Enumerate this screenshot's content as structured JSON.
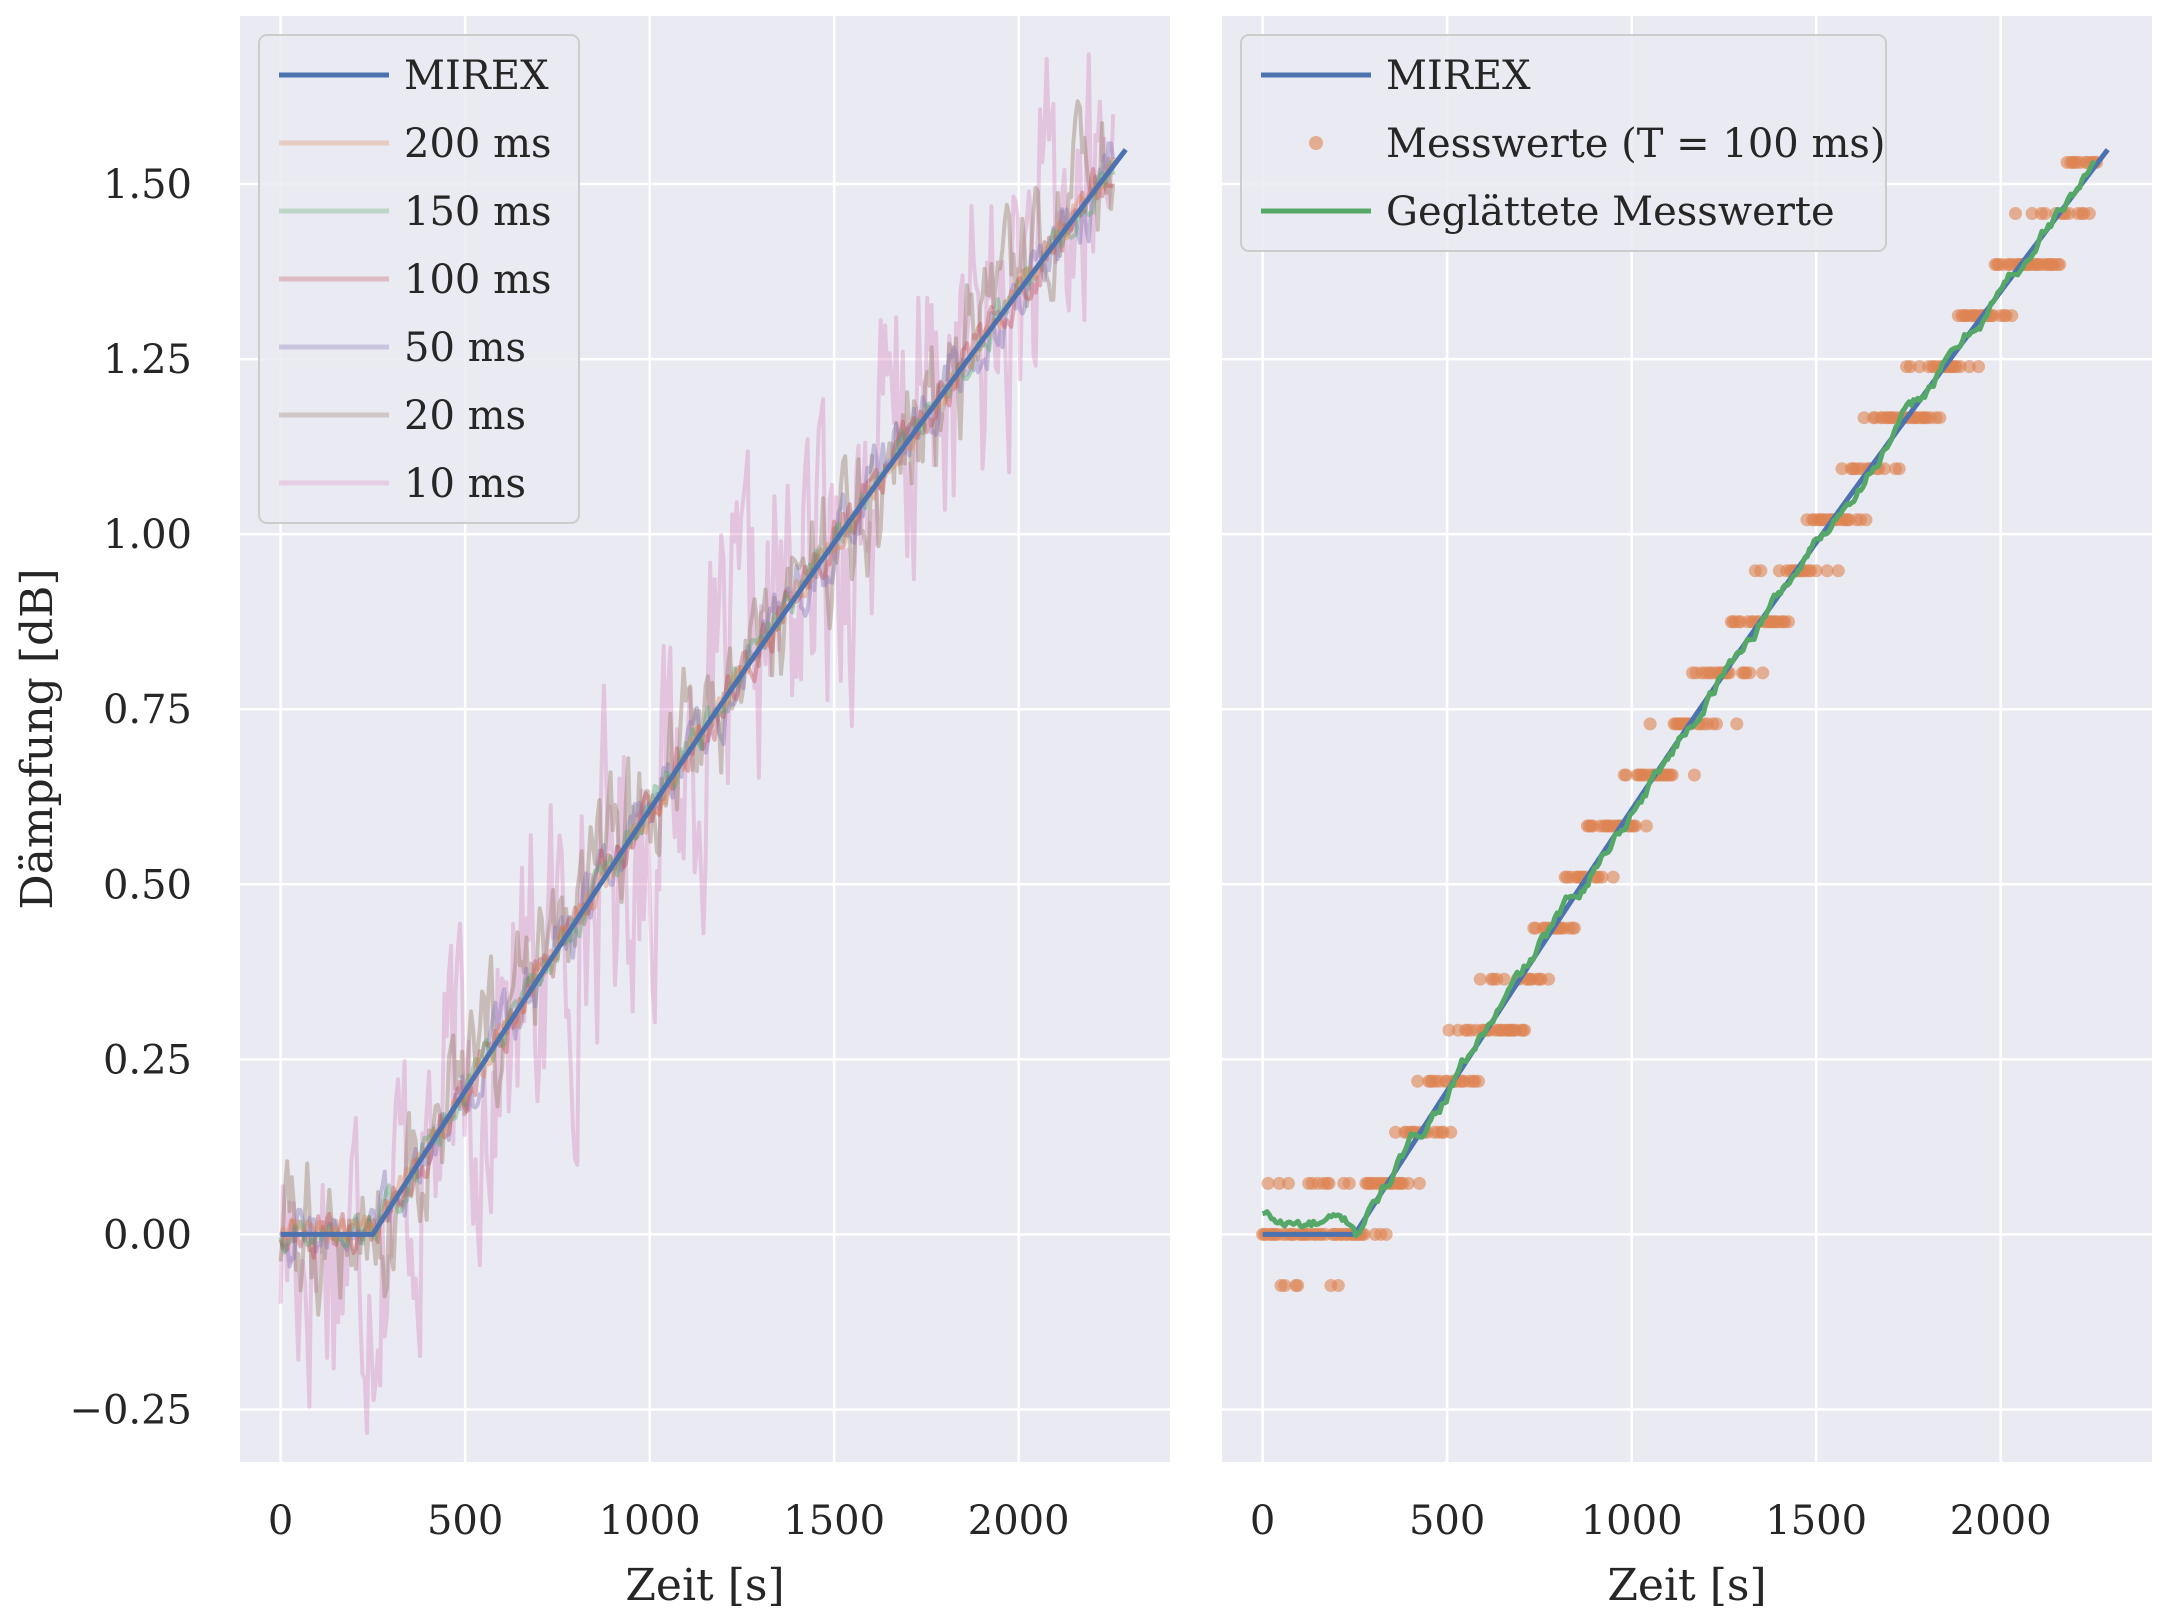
{
  "figure": {
    "background": "#ffffff",
    "axes_facecolor": "#eaeaf2",
    "grid_color": "#ffffff"
  },
  "chart_data": [
    {
      "type": "line",
      "xlabel": "Zeit [s]",
      "ylabel": "Dämpfung [dB]",
      "xlim": [
        -110,
        2410
      ],
      "ylim": [
        -0.325,
        1.74
      ],
      "xticks": [
        0,
        500,
        1000,
        1500,
        2000
      ],
      "xtick_labels": [
        "0",
        "500",
        "1000",
        "1500",
        "2000"
      ],
      "yticks": [
        -0.25,
        0.0,
        0.25,
        0.5,
        0.75,
        1.0,
        1.25,
        1.5
      ],
      "ytick_labels": [
        "−0.25",
        "0.00",
        "0.25",
        "0.50",
        "0.75",
        "1.00",
        "1.25",
        "1.50"
      ],
      "grid": true,
      "legend": "top-left",
      "model": "MIREX reference: 0 dB until about 250 s, then rising concave to about 1.55 dB at about 2290 s",
      "series": [
        {
          "name": "MIREX",
          "color": "#4c72b0",
          "alpha": 1.0,
          "noise": 0.0,
          "x_end": 2290,
          "legend": true
        },
        {
          "name": "200 ms",
          "color": "#dd8452",
          "alpha": 0.3,
          "noise": 0.01,
          "x_end": 2260,
          "legend": true
        },
        {
          "name": "150 ms",
          "color": "#55a868",
          "alpha": 0.3,
          "noise": 0.012,
          "x_end": 2260,
          "legend": true
        },
        {
          "name": "100 ms",
          "color": "#c44e52",
          "alpha": 0.3,
          "noise": 0.016,
          "x_end": 2260,
          "legend": true
        },
        {
          "name": "50 ms",
          "color": "#8172b3",
          "alpha": 0.3,
          "noise": 0.024,
          "x_end": 2260,
          "legend": true
        },
        {
          "name": "20 ms",
          "color": "#937860",
          "alpha": 0.3,
          "noise": 0.055,
          "x_end": 2260,
          "legend": true
        },
        {
          "name": "10 ms",
          "color": "#da8bc3",
          "alpha": 0.3,
          "noise": 0.12,
          "x_end": 2260,
          "legend": true
        }
      ]
    },
    {
      "type": "scatter",
      "xlabel": "Zeit [s]",
      "ylabel": "",
      "xlim": [
        -110,
        2410
      ],
      "ylim": [
        -0.325,
        1.74
      ],
      "xticks": [
        0,
        500,
        1000,
        1500,
        2000
      ],
      "xtick_labels": [
        "0",
        "500",
        "1000",
        "1500",
        "2000"
      ],
      "yticks": [
        -0.25,
        0.0,
        0.25,
        0.5,
        0.75,
        1.0,
        1.25,
        1.5
      ],
      "ytick_labels": [],
      "grid": true,
      "legend": "top-left",
      "quantization_step_db": 0.0729,
      "measurement_start_s": 0,
      "measurement_end_s": 2260,
      "series": [
        {
          "name": "MIREX",
          "kind": "line",
          "color": "#4c72b0",
          "x_end": 2290
        },
        {
          "name": "Messwerte (T = 100 ms)",
          "kind": "points",
          "color": "#dd8452",
          "alpha": 0.6
        },
        {
          "name": "Geglättete Messwerte",
          "kind": "line",
          "color": "#55a868",
          "x_end": 2260
        }
      ]
    }
  ]
}
